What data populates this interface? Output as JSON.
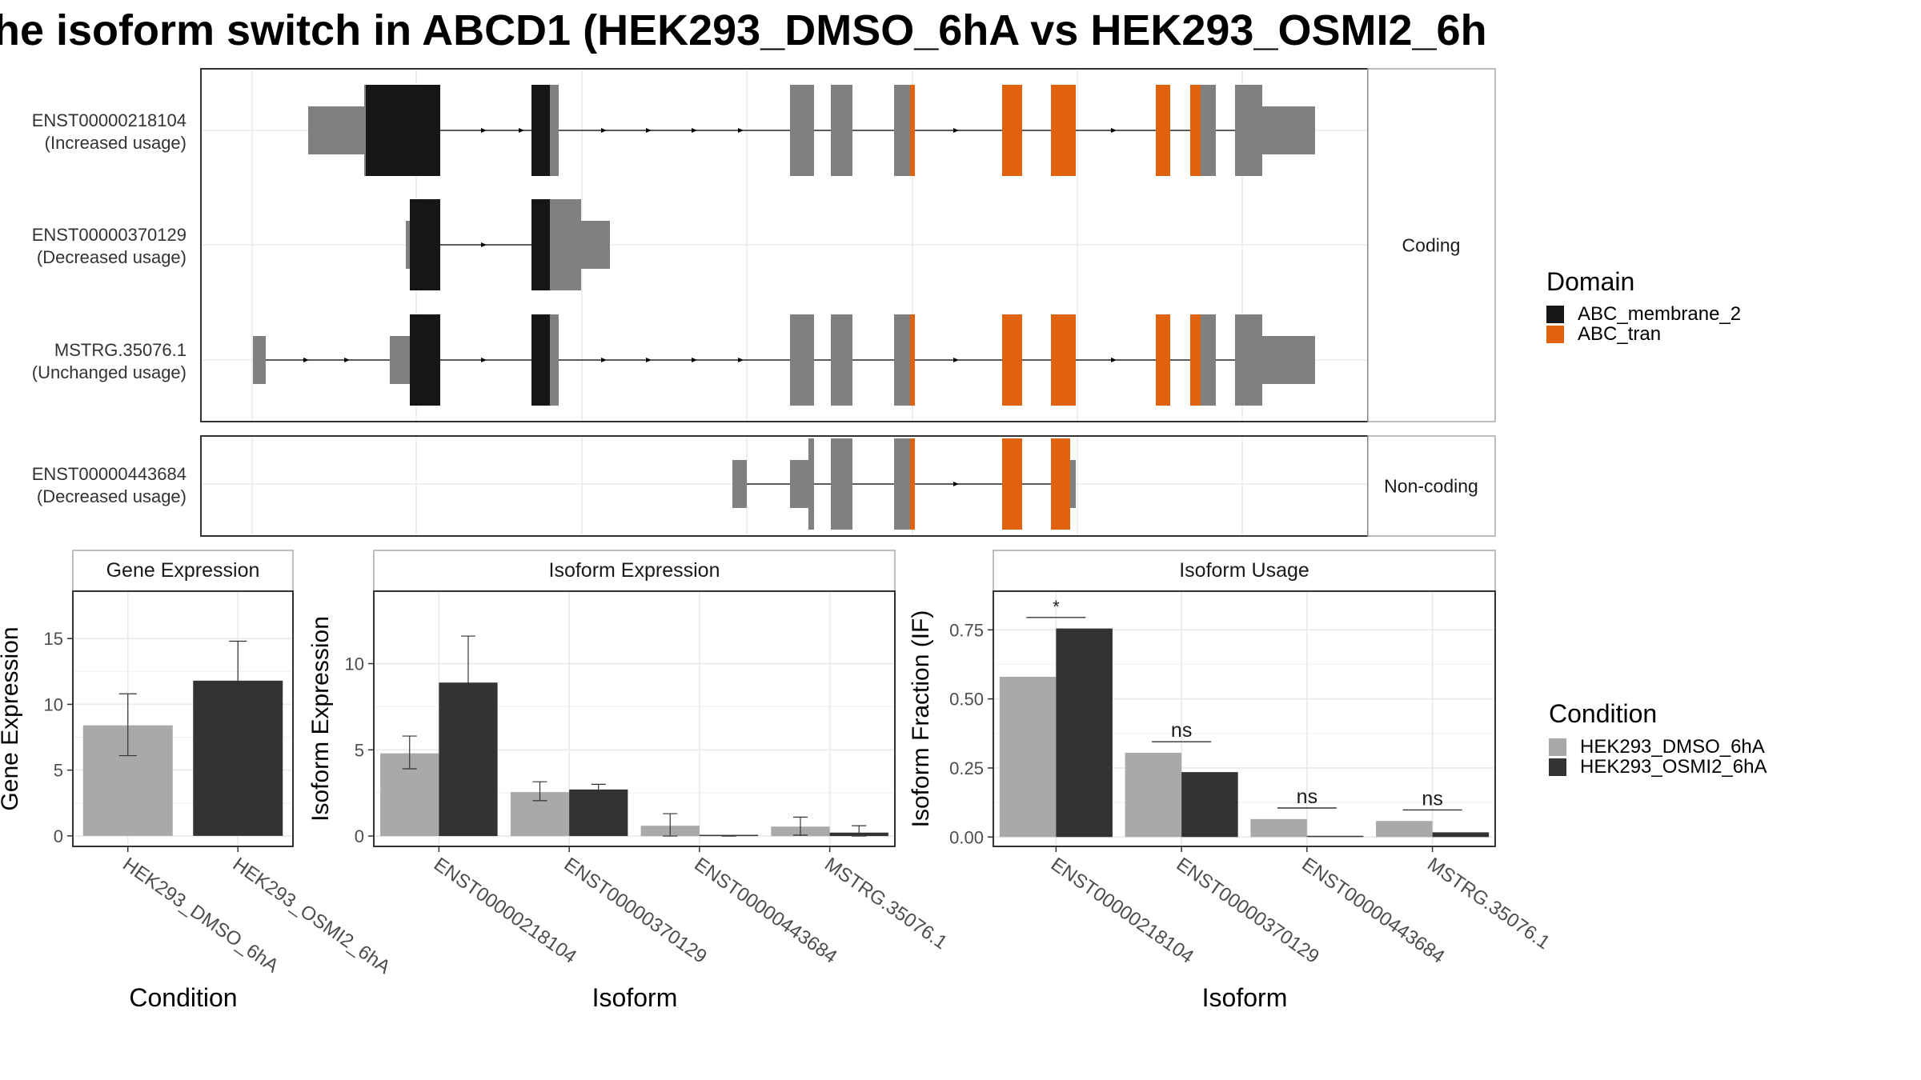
{
  "title": "he isoform switch in ABCD1 (HEK293_DMSO_6hA vs HEK293_OSMI2_6h",
  "colors": {
    "background": "#ffffff",
    "condition1": "#a9a9a9",
    "condition2": "#333333",
    "domain_ABC_membrane_2": "#161616",
    "domain_ABC_tran": "#e0620d",
    "exon": "#808080",
    "panel_border": "#333333",
    "strip_border": "#a8a8a8",
    "grid": "#ebebeb"
  },
  "legend_domain": {
    "title": "Domain",
    "items": [
      {
        "label": "ABC_membrane_2",
        "color": "#161616"
      },
      {
        "label": "ABC_tran",
        "color": "#e0620d"
      }
    ]
  },
  "legend_condition": {
    "title": "Condition",
    "items": [
      {
        "label": "HEK293_DMSO_6hA",
        "color": "#a9a9a9"
      },
      {
        "label": "HEK293_OSMI2_6hA",
        "color": "#333333"
      }
    ]
  },
  "chart_data": [
    {
      "type": "gene-structure",
      "facets": [
        {
          "label": "Coding",
          "transcripts": [
            {
              "id": "ENST00000218104",
              "usage": "(Increased usage)"
            },
            {
              "id": "ENST00000370129",
              "usage": "(Decreased usage)"
            },
            {
              "id": "MSTRG.35076.1",
              "usage": "(Unchanged usage)"
            }
          ]
        },
        {
          "label": "Non-coding",
          "transcripts": [
            {
              "id": "ENST00000443684",
              "usage": "(Decreased usage)"
            }
          ]
        }
      ]
    },
    {
      "type": "bar",
      "strip": "Gene Expression",
      "xlabel": "Condition",
      "ylabel": "Gene Expression",
      "ylim": [
        -0.8,
        18.6
      ],
      "yticks": [
        0,
        5,
        10,
        15
      ],
      "categories": [
        "HEK293_DMSO_6hA",
        "HEK293_OSMI2_6hA"
      ],
      "bars": [
        {
          "category": "HEK293_DMSO_6hA",
          "value": 8.4,
          "err_low": 6.1,
          "err_high": 10.8,
          "color": "#a9a9a9"
        },
        {
          "category": "HEK293_OSMI2_6hA",
          "value": 11.8,
          "err_low": 8.9,
          "err_high": 14.8,
          "color": "#333333"
        }
      ]
    },
    {
      "type": "bar",
      "strip": "Isoform Expression",
      "xlabel": "Isoform",
      "ylabel": "Isoform Expression",
      "ylim": [
        -0.6,
        14.2
      ],
      "yticks": [
        0,
        5,
        10
      ],
      "categories": [
        "ENST00000218104",
        "ENST00000370129",
        "ENST00000443684",
        "MSTRG.35076.1"
      ],
      "series": [
        {
          "name": "HEK293_DMSO_6hA",
          "values": [
            4.8,
            2.55,
            0.6,
            0.55
          ],
          "err_low": [
            3.9,
            2.05,
            0.0,
            0.05
          ],
          "err_high": [
            5.8,
            3.15,
            1.3,
            1.1
          ]
        },
        {
          "name": "HEK293_OSMI2_6hA",
          "values": [
            8.9,
            2.7,
            0.0,
            0.2
          ],
          "err_low": [
            6.2,
            2.45,
            0.0,
            0.0
          ],
          "err_high": [
            11.6,
            3.0,
            0.0,
            0.6
          ]
        }
      ]
    },
    {
      "type": "bar",
      "strip": "Isoform Usage",
      "xlabel": "Isoform",
      "ylabel": "Isoform Fraction (IF)",
      "ylim": [
        -0.034,
        0.89
      ],
      "yticks": [
        0.0,
        0.25,
        0.5,
        0.75
      ],
      "tick_labels": [
        "0.00",
        "0.25",
        "0.50",
        "0.75"
      ],
      "categories": [
        "ENST00000218104",
        "ENST00000370129",
        "ENST00000443684",
        "MSTRG.35076.1"
      ],
      "series": [
        {
          "name": "HEK293_DMSO_6hA",
          "values": [
            0.58,
            0.305,
            0.065,
            0.058
          ]
        },
        {
          "name": "HEK293_OSMI2_6hA",
          "values": [
            0.755,
            0.235,
            0.0,
            0.017
          ]
        }
      ],
      "significance": [
        {
          "category": "ENST00000218104",
          "label": "*",
          "y": 0.795
        },
        {
          "category": "ENST00000370129",
          "label": "ns",
          "y": 0.345
        },
        {
          "category": "ENST00000443684",
          "label": "ns",
          "y": 0.105
        },
        {
          "category": "MSTRG.35076.1",
          "label": "ns",
          "y": 0.098
        }
      ]
    }
  ]
}
